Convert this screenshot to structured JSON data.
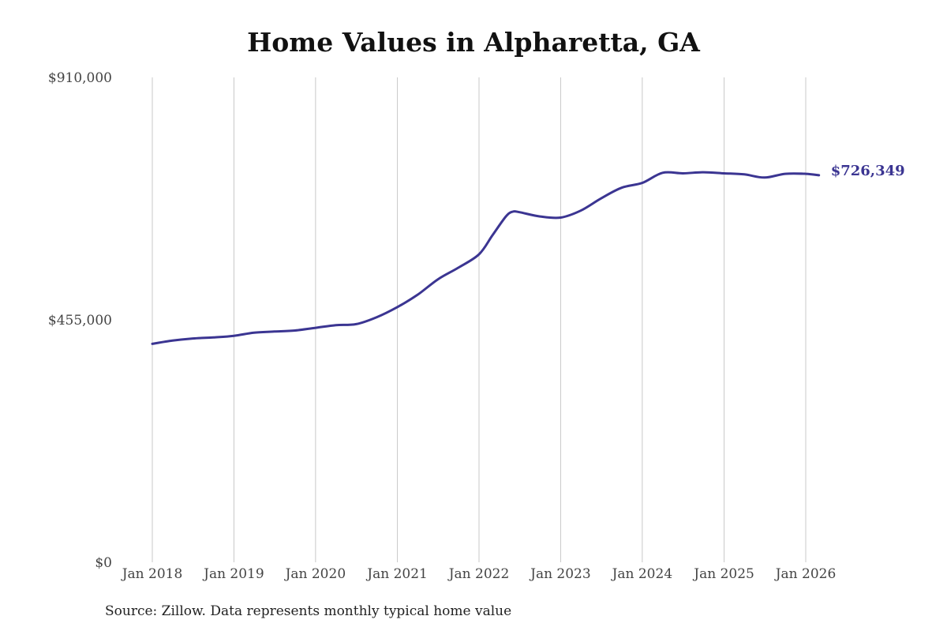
{
  "chart_data": {
    "type": "line",
    "title": "Home Values in Alpharetta, GA",
    "source": "Source: Zillow. Data represents monthly typical home value",
    "ylim": [
      0,
      910000
    ],
    "yticks": [
      {
        "value": 0,
        "label": "$0"
      },
      {
        "value": 455000,
        "label": "$455,000"
      },
      {
        "value": 910000,
        "label": "$910,000"
      }
    ],
    "xlim": [
      "2018-01-01",
      "2026-03-01"
    ],
    "xticks": [
      {
        "date": "2018-01-01",
        "label": "Jan 2018"
      },
      {
        "date": "2019-01-01",
        "label": "Jan 2019"
      },
      {
        "date": "2020-01-01",
        "label": "Jan 2020"
      },
      {
        "date": "2021-01-01",
        "label": "Jan 2021"
      },
      {
        "date": "2022-01-01",
        "label": "Jan 2022"
      },
      {
        "date": "2023-01-01",
        "label": "Jan 2023"
      },
      {
        "date": "2024-01-01",
        "label": "Jan 2024"
      },
      {
        "date": "2025-01-01",
        "label": "Jan 2025"
      },
      {
        "date": "2026-01-01",
        "label": "Jan 2026"
      }
    ],
    "grid": {
      "vertical": true,
      "horizontal": false
    },
    "series": [
      {
        "color": "#3b3592",
        "end_label": "$726,349",
        "points": [
          {
            "x": "2018-01-01",
            "y": 410000
          },
          {
            "x": "2018-04-01",
            "y": 416000
          },
          {
            "x": "2018-07-01",
            "y": 420000
          },
          {
            "x": "2018-10-01",
            "y": 422000
          },
          {
            "x": "2019-01-01",
            "y": 425000
          },
          {
            "x": "2019-04-01",
            "y": 431000
          },
          {
            "x": "2019-07-01",
            "y": 433000
          },
          {
            "x": "2019-10-01",
            "y": 435000
          },
          {
            "x": "2020-01-01",
            "y": 440000
          },
          {
            "x": "2020-04-01",
            "y": 445000
          },
          {
            "x": "2020-07-01",
            "y": 447000
          },
          {
            "x": "2020-10-01",
            "y": 460000
          },
          {
            "x": "2021-01-01",
            "y": 479000
          },
          {
            "x": "2021-04-01",
            "y": 502000
          },
          {
            "x": "2021-07-01",
            "y": 531000
          },
          {
            "x": "2021-10-01",
            "y": 553000
          },
          {
            "x": "2022-01-01",
            "y": 578000
          },
          {
            "x": "2022-03-01",
            "y": 613000
          },
          {
            "x": "2022-05-01",
            "y": 649000
          },
          {
            "x": "2022-06-01",
            "y": 658000
          },
          {
            "x": "2022-07-01",
            "y": 657000
          },
          {
            "x": "2022-10-01",
            "y": 649000
          },
          {
            "x": "2023-01-01",
            "y": 647000
          },
          {
            "x": "2023-04-01",
            "y": 660000
          },
          {
            "x": "2023-07-01",
            "y": 683000
          },
          {
            "x": "2023-10-01",
            "y": 703000
          },
          {
            "x": "2024-01-01",
            "y": 712000
          },
          {
            "x": "2024-04-01",
            "y": 731000
          },
          {
            "x": "2024-07-01",
            "y": 730000
          },
          {
            "x": "2024-10-01",
            "y": 732000
          },
          {
            "x": "2025-01-01",
            "y": 730000
          },
          {
            "x": "2025-04-01",
            "y": 728000
          },
          {
            "x": "2025-07-01",
            "y": 722000
          },
          {
            "x": "2025-10-01",
            "y": 729000
          },
          {
            "x": "2026-01-01",
            "y": 729000
          },
          {
            "x": "2026-03-01",
            "y": 726349
          }
        ]
      }
    ]
  }
}
